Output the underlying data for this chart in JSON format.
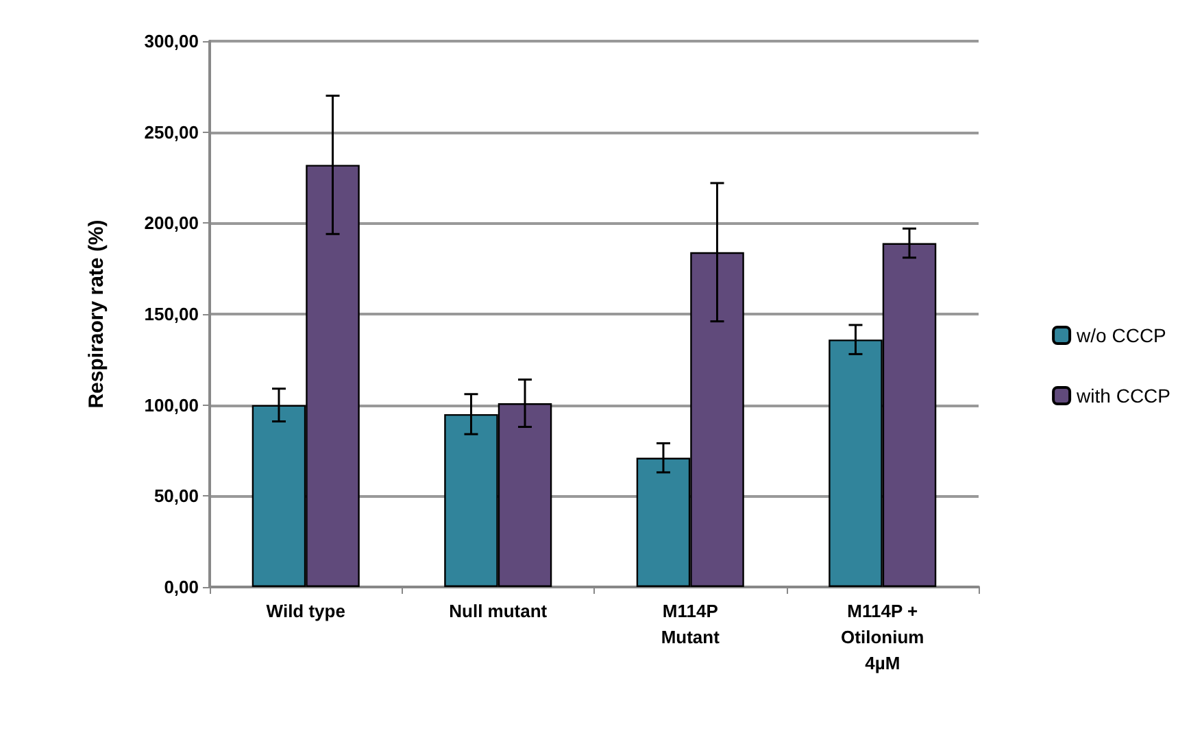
{
  "chart_data": {
    "type": "bar",
    "ylabel": "Respiraory rate (%)",
    "categories": [
      "Wild type",
      "Null mutant",
      "M114P\nMutant",
      "M114P +\nOtilonium\n4µM"
    ],
    "series": [
      {
        "name": "w/o CCCP",
        "color": "#31849b",
        "values": [
          100,
          95,
          71,
          136
        ],
        "errors": [
          9,
          11,
          8,
          8
        ]
      },
      {
        "name": "with CCCP",
        "color": "#604a7b",
        "values": [
          232,
          101,
          184,
          189
        ],
        "errors": [
          38,
          13,
          38,
          8
        ]
      }
    ],
    "ylim": [
      0,
      300
    ],
    "yticks": [
      {
        "value": 0,
        "label": "0,00"
      },
      {
        "value": 50,
        "label": "50,00"
      },
      {
        "value": 100,
        "label": "100,00"
      },
      {
        "value": 150,
        "label": "150,00"
      },
      {
        "value": 200,
        "label": "200,00"
      },
      {
        "value": 250,
        "label": "250,00"
      },
      {
        "value": 300,
        "label": "300,00"
      }
    ],
    "grid": "y",
    "legend": "right"
  }
}
